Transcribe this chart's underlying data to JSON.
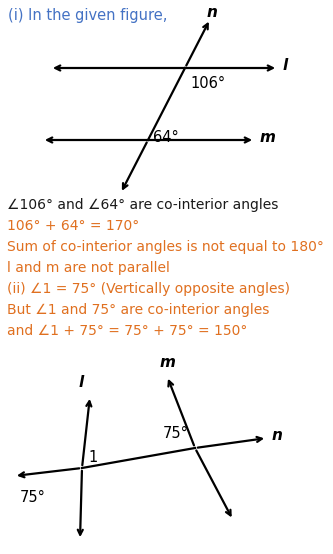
{
  "bg_color": "#ffffff",
  "text_color_black": "#1a1a1a",
  "text_color_orange": "#E07020",
  "text_color_blue": "#4472C4",
  "title": "(i) In the given figure,",
  "angle_label1": "106°",
  "angle_label2": "64°",
  "label_l": "l",
  "label_m": "m",
  "label_n": "n",
  "text_lines": [
    {
      "text": "∠106° and ∠64° are co-interior angles",
      "color": "#1a1a1a"
    },
    {
      "text": "106° + 64° = 170°",
      "color": "#E07020"
    },
    {
      "text": "Sum of co-interior angles is not equal to 180°",
      "color": "#E07020"
    },
    {
      "text": "l and m are not parallel",
      "color": "#E07020"
    },
    {
      "text": "(ii) ∠1 = 75° (Vertically opposite angles)",
      "color": "#E07020"
    },
    {
      "text": "But ∠1 and 75° are co-interior angles",
      "color": "#E07020"
    },
    {
      "text": "and ∠1 + 75° = 75° + 75° = 150°",
      "color": "#E07020"
    }
  ],
  "fig2_label_l": "l",
  "fig2_label_m": "m",
  "fig2_label_n": "n",
  "fig2_angle1": "75°",
  "fig2_angle2": "75°",
  "fig2_label1": "1"
}
